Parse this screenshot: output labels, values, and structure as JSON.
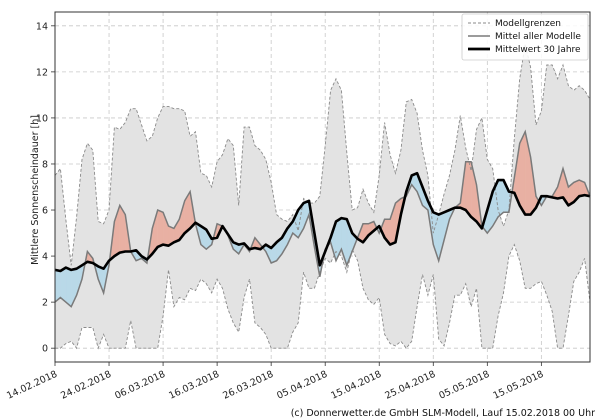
{
  "chart_data": {
    "type": "line",
    "title": "",
    "xlabel": "",
    "ylabel": "Mittlere Sonnenscheindauer [h]",
    "ylim": [
      -0.6,
      14.6
    ],
    "xlim_days": [
      0,
      99
    ],
    "grid": true,
    "legend_position": "top-right",
    "y_ticks": [
      0,
      2,
      4,
      6,
      8,
      10,
      12,
      14
    ],
    "x_ticks": [
      {
        "day": 0,
        "label": "14.02.2018"
      },
      {
        "day": 10,
        "label": "24.02.2018"
      },
      {
        "day": 20,
        "label": "06.03.2018"
      },
      {
        "day": 30,
        "label": "16.03.2018"
      },
      {
        "day": 40,
        "label": "26.03.2018"
      },
      {
        "day": 50,
        "label": "05.04.2018"
      },
      {
        "day": 60,
        "label": "15.04.2018"
      },
      {
        "day": 70,
        "label": "25.04.2018"
      },
      {
        "day": 80,
        "label": "05.05.2018"
      },
      {
        "day": 90,
        "label": "15.05.2018"
      }
    ],
    "legend": [
      {
        "key": "bounds",
        "label": "Modellgrenzen"
      },
      {
        "key": "model_mean",
        "label": "Mittel aller Modelle"
      },
      {
        "key": "climate_mean",
        "label": "Mittelwert 30 Jahre"
      }
    ],
    "colors": {
      "band": "#e3e3e3",
      "bounds": "#8a8a8a",
      "model_mean": "#7a7a7a",
      "climate_mean": "#000000",
      "above": "#e8b0a3",
      "below": "#b9d9e8",
      "grid": "#c8c8c8"
    },
    "series": {
      "upper": [
        7.5,
        7.8,
        5.6,
        3.6,
        5.7,
        8.2,
        8.9,
        8.6,
        5.5,
        5.4,
        6.0,
        9.6,
        9.5,
        9.8,
        10.4,
        10.4,
        9.7,
        9.0,
        9.2,
        10.0,
        10.5,
        10.5,
        10.4,
        10.4,
        10.3,
        9.2,
        9.4,
        7.6,
        7.5,
        7.0,
        8.1,
        8.4,
        9.1,
        8.8,
        6.2,
        9.6,
        9.6,
        8.8,
        8.6,
        8.2,
        7.2,
        5.8,
        5.6,
        5.5,
        5.8,
        5.1,
        6.5,
        6.3,
        6.3,
        6.6,
        8.8,
        11.2,
        11.7,
        11.2,
        8.5,
        6.0,
        6.1,
        6.9,
        6.3,
        5.9,
        7.5,
        9.8,
        8.4,
        7.6,
        8.6,
        10.7,
        10.8,
        10.2,
        8.6,
        7.5,
        5.0,
        5.8,
        6.7,
        7.5,
        8.6,
        10.1,
        8.7,
        7.7,
        9.5,
        10.0,
        8.2,
        7.8,
        6.0,
        5.3,
        6.0,
        9.1,
        11.7,
        13.2,
        12.2,
        9.7,
        10.3,
        12.3,
        12.3,
        11.7,
        12.3,
        11.4,
        11.2,
        11.4,
        11.2,
        10.8,
        9.6
      ],
      "lower": [
        0.0,
        0.0,
        0.2,
        0.3,
        0.0,
        0.9,
        0.9,
        0.9,
        0.0,
        0.6,
        0.0,
        0.0,
        0.0,
        0.0,
        1.2,
        0.0,
        0.0,
        0.0,
        0.0,
        0.0,
        1.4,
        3.4,
        1.8,
        2.2,
        2.1,
        2.6,
        2.5,
        3.0,
        2.8,
        2.4,
        3.0,
        2.6,
        1.7,
        1.1,
        0.7,
        2.2,
        3.0,
        1.1,
        0.9,
        0.6,
        0.0,
        0.0,
        0.0,
        0.0,
        0.7,
        1.1,
        3.3,
        2.6,
        2.6,
        3.3,
        3.9,
        3.7,
        4.2,
        4.0,
        3.3,
        4.3,
        3.8,
        2.6,
        2.1,
        1.9,
        2.2,
        0.6,
        0.2,
        0.1,
        0.3,
        0.0,
        0.3,
        1.8,
        3.2,
        2.3,
        3.2,
        0.4,
        0.1,
        1.1,
        2.3,
        2.3,
        2.8,
        1.8,
        2.6,
        0.0,
        0.0,
        0.0,
        1.4,
        2.4,
        4.0,
        4.5,
        3.8,
        2.6,
        2.6,
        2.8,
        2.9,
        2.3,
        1.6,
        0.0,
        0.0,
        1.4,
        2.9,
        3.3,
        3.9,
        2.0,
        3.1
      ],
      "model_mean": [
        2.0,
        2.2,
        2.0,
        1.8,
        2.3,
        3.0,
        4.2,
        3.9,
        3.0,
        2.4,
        3.6,
        5.5,
        6.2,
        5.8,
        4.2,
        3.8,
        3.9,
        3.7,
        5.2,
        6.0,
        5.9,
        5.3,
        5.2,
        5.6,
        6.4,
        6.8,
        5.4,
        4.5,
        4.3,
        4.5,
        5.4,
        5.3,
        4.9,
        4.3,
        4.1,
        4.5,
        4.2,
        4.8,
        4.5,
        4.2,
        3.7,
        3.8,
        4.1,
        4.5,
        5.0,
        4.8,
        5.2,
        5.8,
        4.4,
        3.1,
        4.3,
        4.6,
        3.8,
        4.3,
        3.6,
        4.2,
        4.8,
        5.4,
        5.4,
        5.5,
        5.0,
        5.6,
        5.6,
        6.3,
        6.5,
        6.6,
        7.1,
        6.8,
        6.2,
        6.0,
        4.5,
        3.8,
        4.7,
        5.6,
        6.1,
        6.3,
        8.1,
        8.1,
        7.1,
        5.3,
        5.0,
        5.3,
        5.7,
        5.9,
        5.9,
        7.4,
        8.9,
        9.4,
        8.3,
        6.6,
        6.2,
        6.6,
        6.6,
        7.0,
        7.8,
        7.0,
        7.2,
        7.3,
        7.2,
        6.6,
        6.6
      ],
      "climate_mean": [
        3.4,
        3.35,
        3.5,
        3.4,
        3.45,
        3.6,
        3.75,
        3.7,
        3.55,
        3.45,
        3.8,
        4.0,
        4.15,
        4.2,
        4.2,
        4.25,
        4.0,
        3.85,
        4.1,
        4.4,
        4.5,
        4.45,
        4.6,
        4.7,
        5.0,
        5.2,
        5.45,
        5.3,
        5.15,
        4.75,
        4.8,
        5.3,
        4.95,
        4.6,
        4.5,
        4.55,
        4.3,
        4.35,
        4.3,
        4.5,
        4.35,
        4.6,
        4.8,
        5.2,
        5.5,
        6.0,
        6.3,
        6.4,
        5.0,
        3.6,
        4.2,
        4.8,
        5.5,
        5.65,
        5.6,
        5.0,
        4.75,
        4.6,
        4.9,
        5.1,
        5.3,
        4.8,
        4.5,
        4.6,
        5.8,
        6.8,
        7.5,
        7.6,
        7.0,
        6.4,
        5.9,
        5.8,
        5.9,
        6.0,
        6.1,
        6.1,
        6.0,
        5.7,
        5.5,
        5.2,
        6.0,
        6.8,
        7.3,
        7.3,
        6.8,
        6.75,
        6.2,
        5.8,
        5.8,
        6.1,
        6.6,
        6.6,
        6.55,
        6.5,
        6.55,
        6.2,
        6.35,
        6.6,
        6.65,
        6.6,
        6.6
      ]
    }
  },
  "footer": {
    "credit": "(c) Donnerwetter.de GmbH SLM-Modell, Lauf 15.02.2018 00 Uhr"
  }
}
